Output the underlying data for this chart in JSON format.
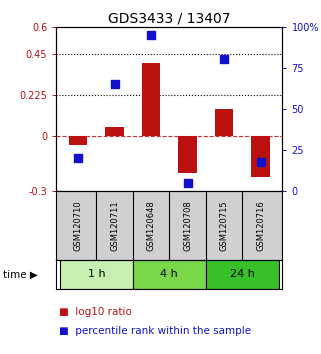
{
  "title": "GDS3433 / 13407",
  "samples": [
    "GSM120710",
    "GSM120711",
    "GSM120648",
    "GSM120708",
    "GSM120715",
    "GSM120716"
  ],
  "log10_ratio": [
    -0.05,
    0.05,
    0.4,
    -0.2,
    0.15,
    -0.22
  ],
  "percentile_rank": [
    20,
    65,
    95,
    5,
    80,
    18
  ],
  "time_groups": [
    {
      "label": "1 h",
      "start": 0,
      "end": 2,
      "color": "#c8f0b0"
    },
    {
      "label": "4 h",
      "start": 2,
      "end": 4,
      "color": "#78d848"
    },
    {
      "label": "24 h",
      "start": 4,
      "end": 6,
      "color": "#38c028"
    }
  ],
  "bar_color": "#bb1111",
  "dot_color": "#1111cc",
  "left_ylim": [
    -0.3,
    0.6
  ],
  "right_ylim": [
    0,
    100
  ],
  "left_yticks": [
    -0.3,
    0,
    0.225,
    0.45,
    0.6
  ],
  "right_yticks": [
    0,
    25,
    50,
    75,
    100
  ],
  "left_ytick_labels": [
    "-0.3",
    "0",
    "0.225",
    "0.45",
    "0.6"
  ],
  "right_ytick_labels": [
    "0",
    "25",
    "50",
    "75",
    "100%"
  ],
  "hlines": [
    0.225,
    0.45
  ],
  "bar_width": 0.5,
  "dot_size": 30,
  "background_color": "#ffffff",
  "label_log10": "log10 ratio",
  "label_pct": "percentile rank within the sample",
  "title_fontsize": 10,
  "tick_fontsize": 7,
  "legend_fontsize": 7.5,
  "sample_fontsize": 6.0
}
